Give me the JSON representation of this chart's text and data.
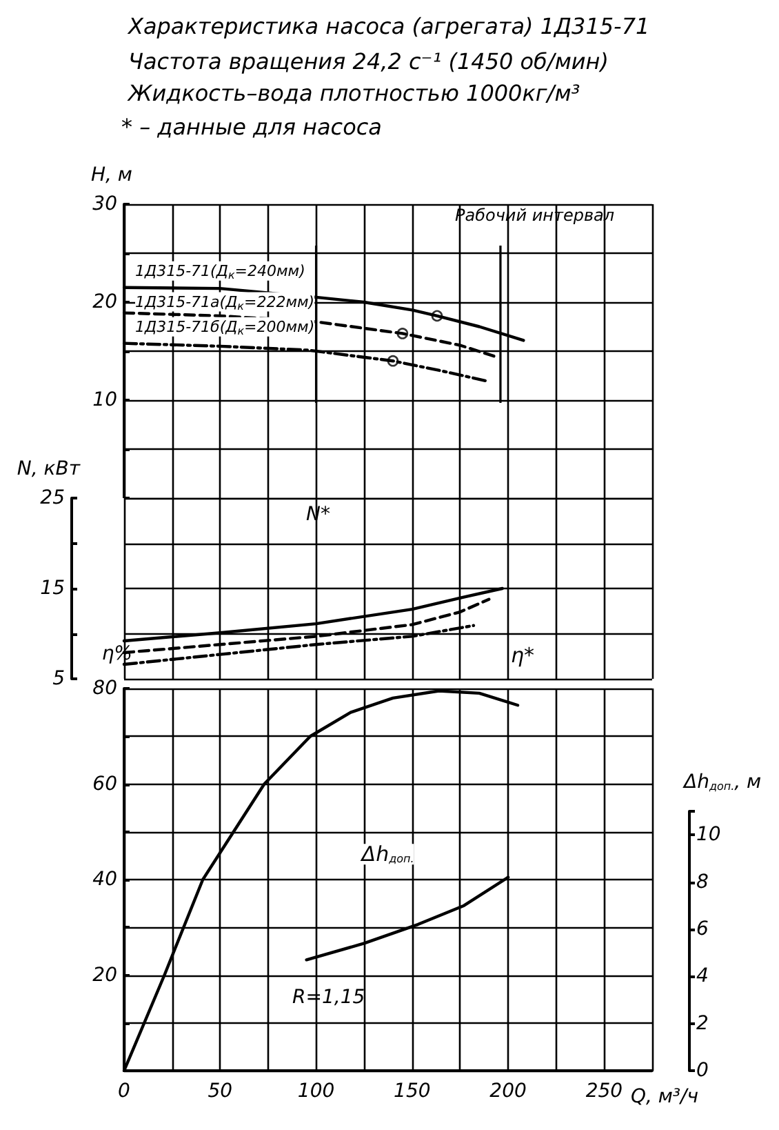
{
  "chart_data": [
    {
      "type": "line",
      "title": "Характеристика насоса (агрегата) 1Д315-71",
      "subtitle": "Частота вращения 24,2 с⁻¹ (1450 об/мин)\nЖидкость–вода плотностью 1000кг/м³",
      "annotations": [
        "* – данные для насоса",
        "Рабочий интервал"
      ],
      "ylabel": "H, м",
      "xlim": [
        0,
        275
      ],
      "xticks": [
        0,
        {
          "value": 25,
          "label": null
        },
        50,
        {
          "value": 75,
          "label": null
        },
        100,
        {
          "value": 125,
          "label": null
        },
        150,
        {
          "value": 175,
          "label": null
        },
        200,
        {
          "value": 225,
          "label": null
        },
        250,
        {
          "value": 275,
          "label": null
        }
      ],
      "ylim": [
        0,
        30
      ],
      "yticks": [
        {
          "value": 0,
          "label": null
        },
        {
          "value": 5,
          "label": null
        },
        10,
        {
          "value": 15,
          "label": null
        },
        20,
        {
          "value": 25,
          "label": null
        },
        30
      ],
      "tick_labels": "y",
      "grid": true,
      "legend": false,
      "marker": "none",
      "ref_lines": [
        {
          "axis": "x",
          "value": 100
        },
        {
          "axis": "x",
          "value": 196
        }
      ],
      "series": [
        {
          "name": "1Д315-71(Д$_{к}$=240мм)",
          "color": "#000000",
          "line_style": "solid",
          "x": [
            0,
            50,
            100,
            125,
            150,
            163,
            185,
            208
          ],
          "values": [
            21.5,
            21.4,
            20.5,
            20.0,
            19.2,
            18.6,
            17.5,
            16.1
          ]
        },
        {
          "name": "1Д315-71а(Д$_{к}$=222мм)",
          "color": "#000000",
          "line_style": "dashed",
          "x": [
            0,
            50,
            100,
            145,
            175,
            194
          ],
          "values": [
            18.9,
            18.6,
            18.0,
            16.8,
            15.6,
            14.4
          ]
        },
        {
          "name": "1Д315-71б(Д$_{к}$=200мм)",
          "color": "#000000",
          "line_style": "dashdot",
          "x": [
            0,
            50,
            96,
            140,
            165,
            190
          ],
          "values": [
            15.8,
            15.5,
            15.1,
            14.0,
            13.0,
            11.9
          ]
        },
        {
          "type": "scatter",
          "marker": "circle",
          "color": "#000000",
          "x": [
            163,
            145,
            140
          ],
          "values": [
            18.6,
            16.8,
            14.0
          ]
        }
      ]
    },
    {
      "type": "line",
      "annotations": [
        "N*"
      ],
      "ylabel": "N, кВт",
      "xlim": [
        0,
        275
      ],
      "xticks": [
        0,
        {
          "value": 25,
          "label": null
        },
        50,
        {
          "value": 75,
          "label": null
        },
        100,
        {
          "value": 125,
          "label": null
        },
        150,
        {
          "value": 175,
          "label": null
        },
        200,
        {
          "value": 225,
          "label": null
        },
        250,
        {
          "value": 275,
          "label": null
        }
      ],
      "ylim": [
        5,
        25
      ],
      "yticks": [
        5,
        {
          "value": 10,
          "label": null
        },
        15,
        {
          "value": 20,
          "label": null
        },
        25
      ],
      "tick_labels": "y",
      "grid": true,
      "legend": false,
      "marker": "none",
      "series": [
        {
          "color": "#000000",
          "line_style": "solid",
          "x": [
            0,
            50,
            100,
            150,
            176,
            197
          ],
          "values": [
            9.2,
            10.1,
            11.1,
            12.7,
            14.0,
            15.0
          ]
        },
        {
          "color": "#000000",
          "line_style": "dashed",
          "x": [
            0,
            50,
            100,
            150,
            175,
            190
          ],
          "values": [
            7.9,
            8.8,
            9.7,
            11.0,
            12.4,
            13.8
          ]
        },
        {
          "color": "#000000",
          "line_style": "dashdot",
          "x": [
            0,
            50,
            100,
            150,
            182
          ],
          "values": [
            6.6,
            7.7,
            8.8,
            9.7,
            10.9
          ]
        }
      ]
    },
    {
      "type": "line",
      "annotations": [
        "R=1,15"
      ],
      "xlabel": "Q, м³/ч",
      "ylabel": "η%",
      "xlim": [
        0,
        275
      ],
      "xticks": [
        0,
        {
          "value": 25,
          "label": null
        },
        50,
        {
          "value": 75,
          "label": null
        },
        100,
        {
          "value": 125,
          "label": null
        },
        150,
        {
          "value": 175,
          "label": null
        },
        200,
        {
          "value": 225,
          "label": null
        },
        250,
        {
          "value": 275,
          "label": null
        }
      ],
      "ylim": [
        0,
        80
      ],
      "yticks": [
        {
          "value": 0,
          "label": null
        },
        {
          "value": 10,
          "label": null
        },
        20,
        {
          "value": 30,
          "label": null
        },
        40,
        {
          "value": 50,
          "label": null
        },
        60,
        {
          "value": 70,
          "label": null
        },
        80
      ],
      "grid": true,
      "legend": false,
      "marker": "none",
      "series": [
        {
          "name": "η*",
          "color": "#000000",
          "line_style": "solid",
          "x": [
            0,
            21,
            41,
            57,
            73,
            97,
            118,
            140,
            164,
            185,
            205
          ],
          "values": [
            0,
            20,
            40,
            50,
            60,
            70,
            75,
            78,
            79.5,
            79,
            76.5
          ]
        }
      ]
    },
    {
      "type": "line",
      "ylabel": "Δh$_{доп.}$, м",
      "xlim": [
        0,
        275
      ],
      "ylim": [
        0,
        11
      ],
      "yticks": [
        0,
        2,
        4,
        6,
        8,
        10
      ],
      "tick_labels": "y",
      "legend": false,
      "marker": "none",
      "series": [
        {
          "name": "Δh$_{доп.}$",
          "color": "#000000",
          "line_style": "solid",
          "x": [
            95,
            125,
            153,
            177,
            200
          ],
          "values": [
            4.7,
            5.4,
            6.2,
            7.0,
            8.2
          ]
        }
      ]
    }
  ]
}
